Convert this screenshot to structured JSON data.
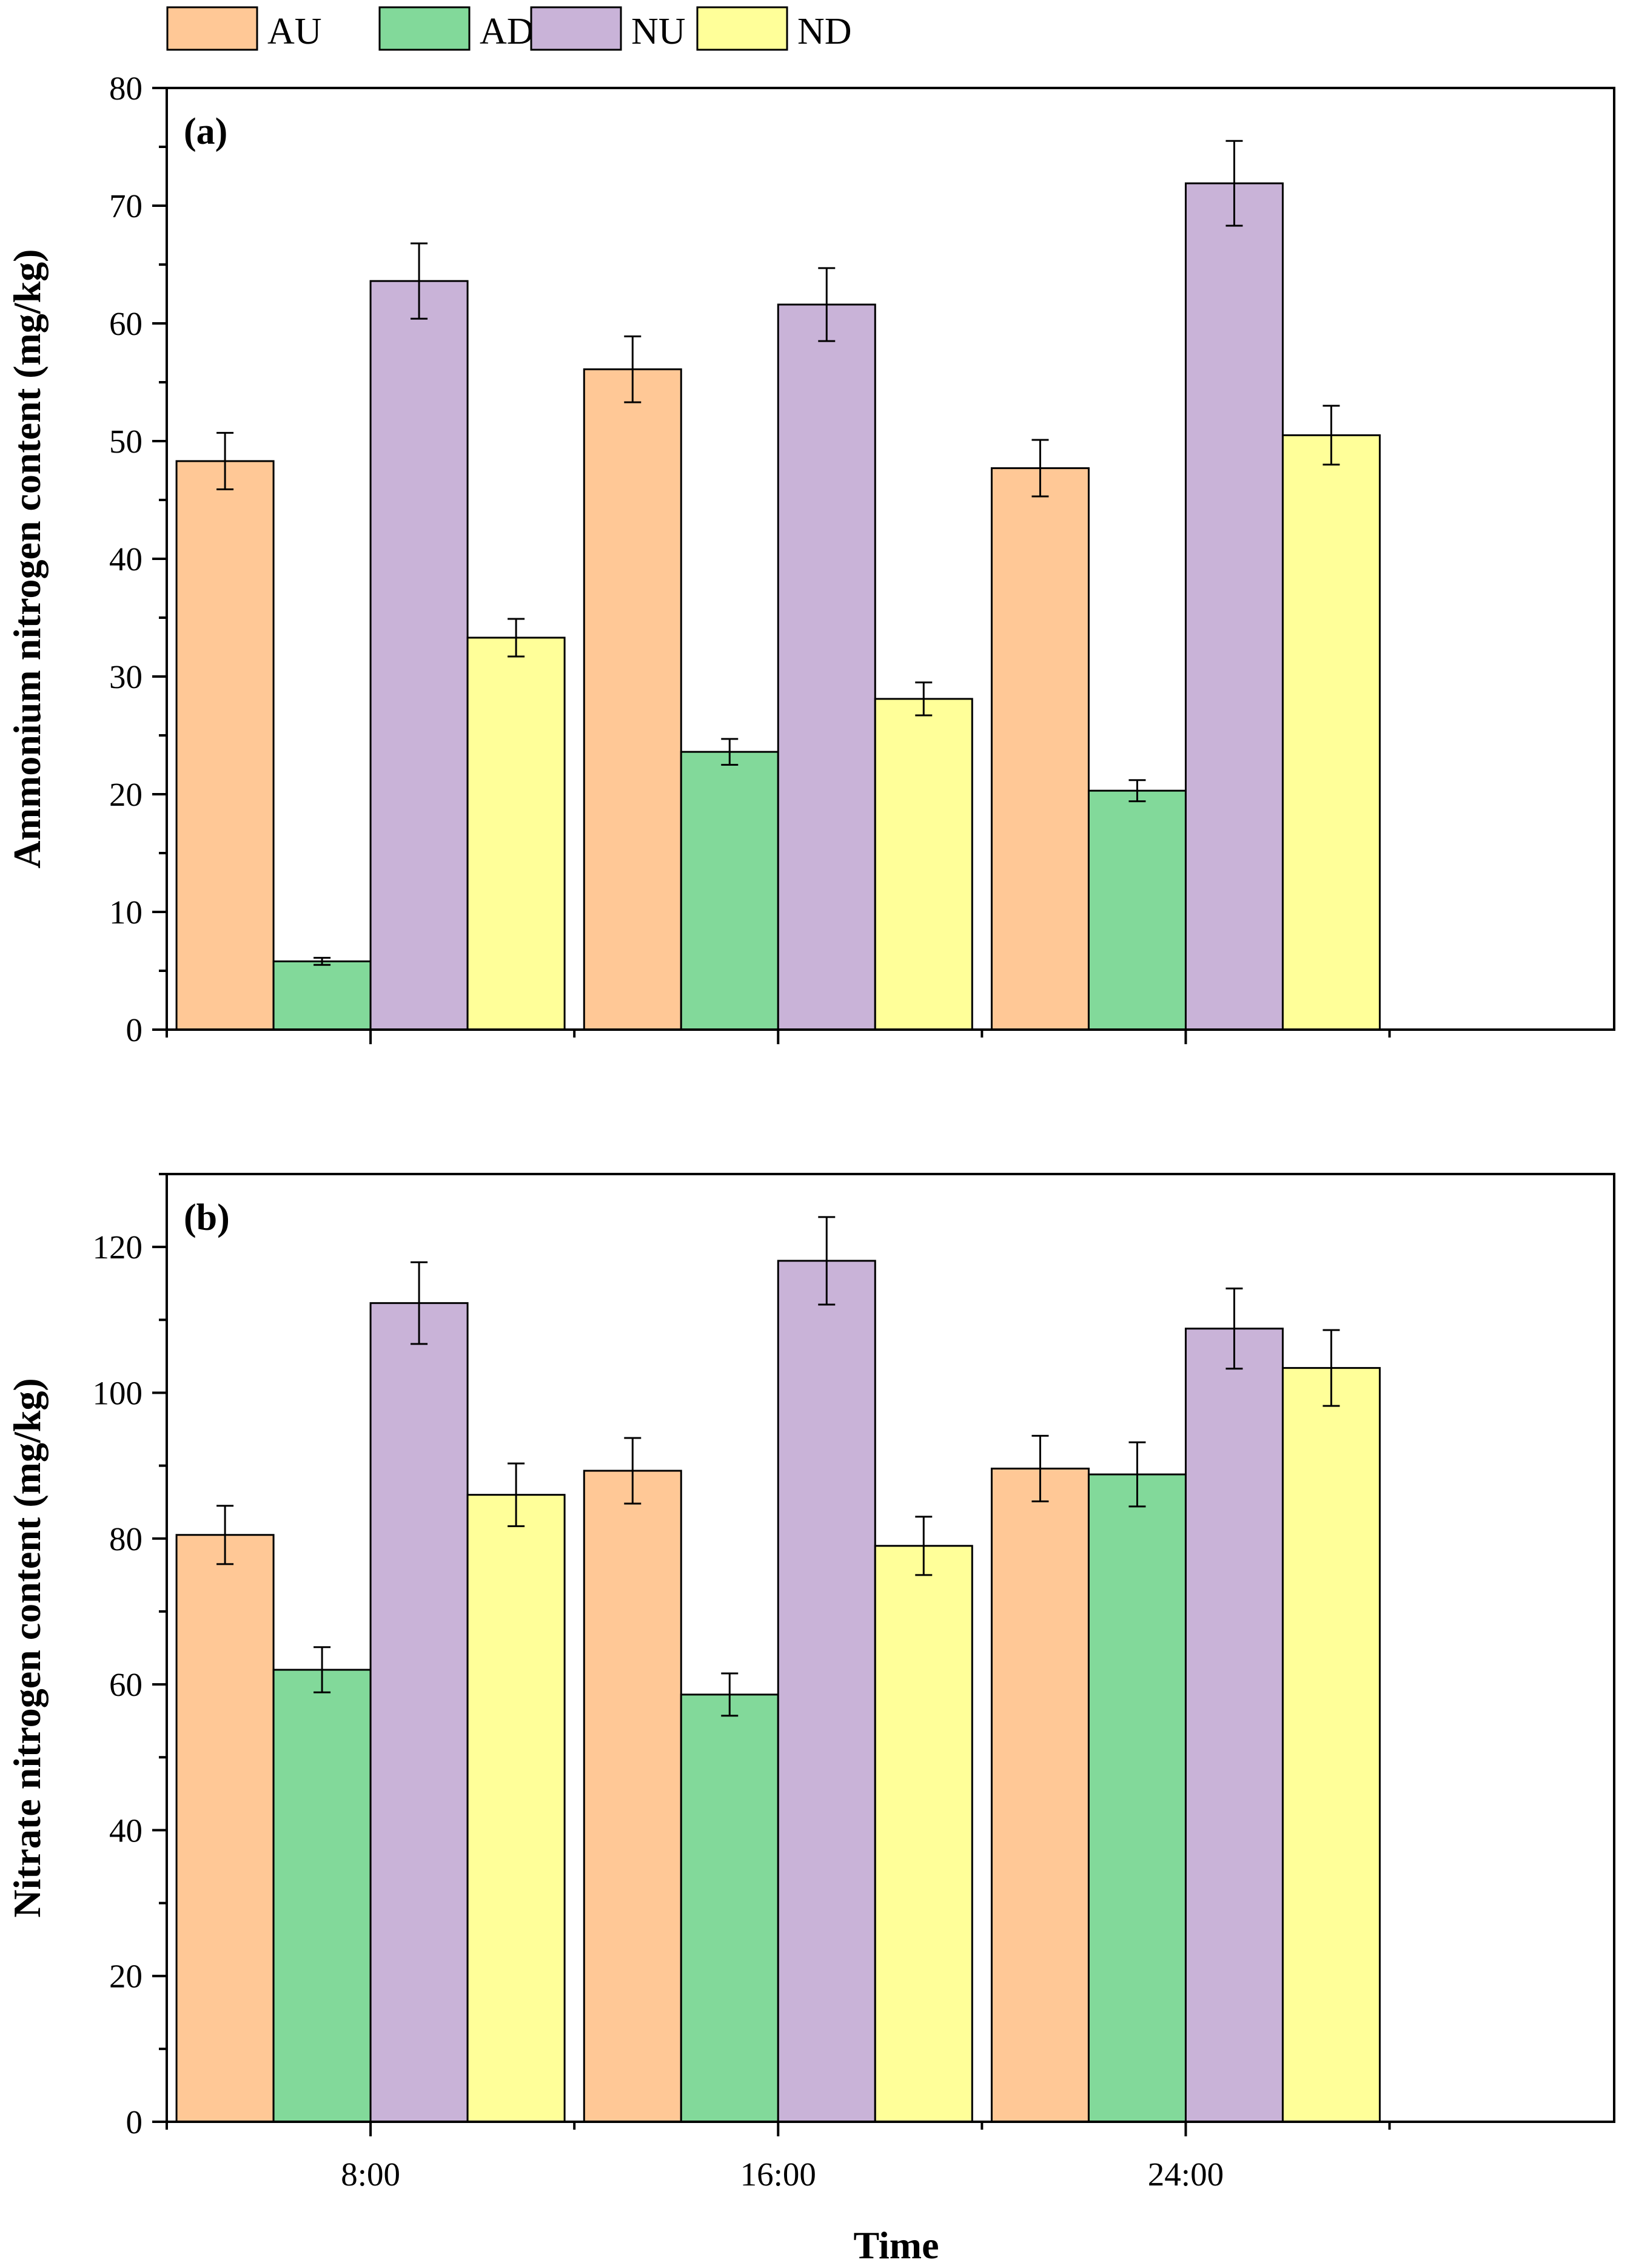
{
  "legend": [
    {
      "name": "AU",
      "color": "#FFC896"
    },
    {
      "name": "AD",
      "color": "#82D99A"
    },
    {
      "name": "NU",
      "color": "#C9B3D8"
    },
    {
      "name": "ND",
      "color": "#FFFF99"
    }
  ],
  "xlabel": "Time",
  "chart_data": [
    {
      "type": "bar",
      "panel_label": "(a)",
      "categories": [
        "8:00",
        "16:00",
        "24:00"
      ],
      "ylabel": "Ammonium nitrogen content (mg/kg)",
      "ylim": [
        0,
        80
      ],
      "yticks": [
        0,
        10,
        20,
        30,
        40,
        50,
        60,
        70,
        80
      ],
      "grid": false,
      "legend_position": "top",
      "series": [
        {
          "name": "AU",
          "color": "#FFC896",
          "values": [
            48.3,
            56.1,
            47.7
          ],
          "errors": [
            2.4,
            2.8,
            2.4
          ]
        },
        {
          "name": "AD",
          "color": "#82D99A",
          "values": [
            5.8,
            23.6,
            20.3
          ],
          "errors": [
            0.3,
            1.1,
            0.9
          ]
        },
        {
          "name": "NU",
          "color": "#C9B3D8",
          "values": [
            63.6,
            61.6,
            71.9
          ],
          "errors": [
            3.2,
            3.1,
            3.6
          ]
        },
        {
          "name": "ND",
          "color": "#FFFF99",
          "values": [
            33.3,
            28.1,
            50.5
          ],
          "errors": [
            1.6,
            1.4,
            2.5
          ]
        }
      ]
    },
    {
      "type": "bar",
      "panel_label": "(b)",
      "categories": [
        "8:00",
        "16:00",
        "24:00"
      ],
      "ylabel": "Nitrate nitrogen content (mg/kg)",
      "ylim": [
        0,
        130
      ],
      "yticks": [
        0,
        20,
        40,
        60,
        80,
        100,
        120
      ],
      "grid": false,
      "series": [
        {
          "name": "AU",
          "color": "#FFC896",
          "values": [
            80.5,
            89.3,
            89.6
          ],
          "errors": [
            4.0,
            4.5,
            4.5
          ]
        },
        {
          "name": "AD",
          "color": "#82D99A",
          "values": [
            62.0,
            58.6,
            88.8
          ],
          "errors": [
            3.1,
            2.9,
            4.4
          ]
        },
        {
          "name": "NU",
          "color": "#C9B3D8",
          "values": [
            112.3,
            118.1,
            108.8
          ],
          "errors": [
            5.6,
            6.0,
            5.5
          ]
        },
        {
          "name": "ND",
          "color": "#FFFF99",
          "values": [
            86.0,
            79.0,
            103.4
          ],
          "errors": [
            4.3,
            4.0,
            5.2
          ]
        }
      ]
    }
  ]
}
